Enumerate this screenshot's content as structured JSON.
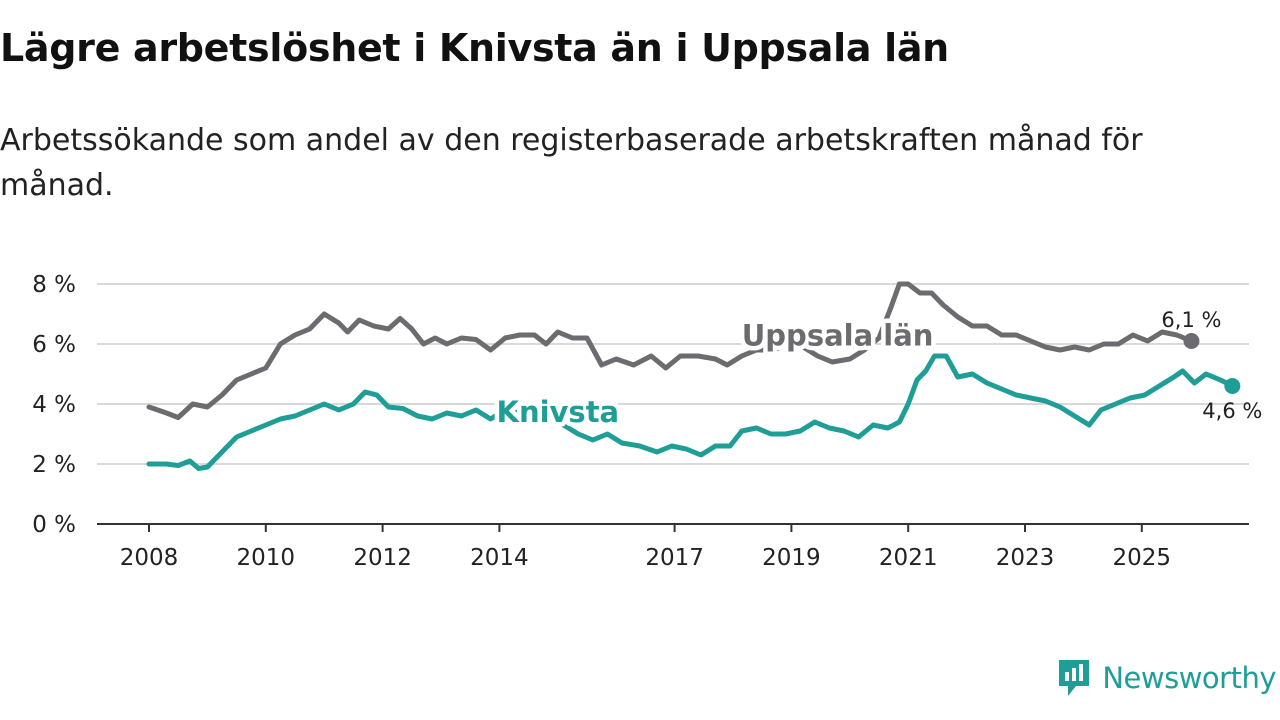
{
  "title": "Lägre arbetslöshet i Knivsta än i Uppsala län",
  "subtitle": "Arbetssökande som andel av den registerbaserade arbetskraften månad för månad.",
  "brand": {
    "name": "Newsworthy",
    "icon": "newsworthy-logo-icon",
    "color": "#1f9e97"
  },
  "chart_data": {
    "type": "line",
    "title": "Lägre arbetslöshet i Knivsta än i Uppsala län",
    "xlabel": "",
    "ylabel": "",
    "xlim": [
      2007.5,
      2027.1
    ],
    "ylim": [
      0,
      8.4
    ],
    "grid": true,
    "yticks": [
      0,
      2,
      4,
      6,
      8
    ],
    "ytick_labels": [
      "0 %",
      "2 %",
      "4 %",
      "6 %",
      "8 %"
    ],
    "xticks": [
      2008,
      2010,
      2012,
      2014,
      2017,
      2019,
      2021,
      2023,
      2025
    ],
    "xtick_labels": [
      "2008",
      "2010",
      "2012",
      "2014",
      "2017",
      "2019",
      "2021",
      "2023",
      "2025"
    ],
    "series": [
      {
        "name": "Uppsala län",
        "color": "#6b6b70",
        "end_label": "6,1 %",
        "points": [
          [
            2008.0,
            3.9
          ],
          [
            2008.3,
            3.7
          ],
          [
            2008.5,
            3.55
          ],
          [
            2008.75,
            4.0
          ],
          [
            2009.0,
            3.9
          ],
          [
            2009.25,
            4.3
          ],
          [
            2009.5,
            4.8
          ],
          [
            2009.75,
            5.0
          ],
          [
            2010.0,
            5.2
          ],
          [
            2010.25,
            6.0
          ],
          [
            2010.5,
            6.3
          ],
          [
            2010.75,
            6.5
          ],
          [
            2011.0,
            7.0
          ],
          [
            2011.25,
            6.7
          ],
          [
            2011.4,
            6.4
          ],
          [
            2011.6,
            6.8
          ],
          [
            2011.85,
            6.6
          ],
          [
            2012.1,
            6.5
          ],
          [
            2012.3,
            6.85
          ],
          [
            2012.5,
            6.5
          ],
          [
            2012.7,
            6.0
          ],
          [
            2012.9,
            6.2
          ],
          [
            2013.1,
            6.0
          ],
          [
            2013.35,
            6.2
          ],
          [
            2013.6,
            6.15
          ],
          [
            2013.85,
            5.8
          ],
          [
            2014.1,
            6.2
          ],
          [
            2014.35,
            6.3
          ],
          [
            2014.6,
            6.3
          ],
          [
            2014.8,
            6.0
          ],
          [
            2015.0,
            6.4
          ],
          [
            2015.25,
            6.2
          ],
          [
            2015.5,
            6.2
          ],
          [
            2015.75,
            5.3
          ],
          [
            2016.0,
            5.5
          ],
          [
            2016.3,
            5.3
          ],
          [
            2016.6,
            5.6
          ],
          [
            2016.85,
            5.2
          ],
          [
            2017.1,
            5.6
          ],
          [
            2017.4,
            5.6
          ],
          [
            2017.7,
            5.5
          ],
          [
            2017.9,
            5.3
          ],
          [
            2018.15,
            5.6
          ],
          [
            2018.4,
            5.8
          ],
          [
            2018.7,
            5.8
          ],
          [
            2018.95,
            6.0
          ],
          [
            2019.2,
            5.9
          ],
          [
            2019.45,
            5.6
          ],
          [
            2019.7,
            5.4
          ],
          [
            2020.0,
            5.5
          ],
          [
            2020.25,
            5.8
          ],
          [
            2020.5,
            6.2
          ],
          [
            2020.7,
            7.2
          ],
          [
            2020.85,
            8.0
          ],
          [
            2021.0,
            8.0
          ],
          [
            2021.2,
            7.7
          ],
          [
            2021.4,
            7.7
          ],
          [
            2021.6,
            7.3
          ],
          [
            2021.85,
            6.9
          ],
          [
            2022.1,
            6.6
          ],
          [
            2022.35,
            6.6
          ],
          [
            2022.6,
            6.3
          ],
          [
            2022.85,
            6.3
          ],
          [
            2023.1,
            6.1
          ],
          [
            2023.35,
            5.9
          ],
          [
            2023.6,
            5.8
          ],
          [
            2023.85,
            5.9
          ],
          [
            2024.1,
            5.8
          ],
          [
            2024.35,
            6.0
          ],
          [
            2024.6,
            6.0
          ],
          [
            2024.85,
            6.3
          ],
          [
            2025.1,
            6.1
          ],
          [
            2025.35,
            6.4
          ],
          [
            2025.6,
            6.3
          ],
          [
            2025.85,
            6.1
          ]
        ]
      },
      {
        "name": "Knivsta",
        "color": "#1f9e97",
        "end_label": "4,6 %",
        "points": [
          [
            2008.0,
            2.0
          ],
          [
            2008.3,
            2.0
          ],
          [
            2008.5,
            1.95
          ],
          [
            2008.7,
            2.1
          ],
          [
            2008.85,
            1.85
          ],
          [
            2009.0,
            1.9
          ],
          [
            2009.25,
            2.4
          ],
          [
            2009.5,
            2.9
          ],
          [
            2009.75,
            3.1
          ],
          [
            2010.0,
            3.3
          ],
          [
            2010.25,
            3.5
          ],
          [
            2010.5,
            3.6
          ],
          [
            2010.75,
            3.8
          ],
          [
            2011.0,
            4.0
          ],
          [
            2011.25,
            3.8
          ],
          [
            2011.5,
            4.0
          ],
          [
            2011.7,
            4.4
          ],
          [
            2011.9,
            4.3
          ],
          [
            2012.1,
            3.9
          ],
          [
            2012.35,
            3.85
          ],
          [
            2012.6,
            3.6
          ],
          [
            2012.85,
            3.5
          ],
          [
            2013.1,
            3.7
          ],
          [
            2013.35,
            3.6
          ],
          [
            2013.6,
            3.8
          ],
          [
            2013.85,
            3.5
          ],
          [
            2014.1,
            3.8
          ],
          [
            2014.35,
            3.7
          ],
          [
            2014.6,
            3.6
          ],
          [
            2014.85,
            3.5
          ],
          [
            2015.1,
            3.3
          ],
          [
            2015.35,
            3.0
          ],
          [
            2015.6,
            2.8
          ],
          [
            2015.85,
            3.0
          ],
          [
            2016.1,
            2.7
          ],
          [
            2016.4,
            2.6
          ],
          [
            2016.7,
            2.4
          ],
          [
            2016.95,
            2.6
          ],
          [
            2017.2,
            2.5
          ],
          [
            2017.45,
            2.3
          ],
          [
            2017.7,
            2.6
          ],
          [
            2017.95,
            2.6
          ],
          [
            2018.15,
            3.1
          ],
          [
            2018.4,
            3.2
          ],
          [
            2018.65,
            3.0
          ],
          [
            2018.9,
            3.0
          ],
          [
            2019.15,
            3.1
          ],
          [
            2019.4,
            3.4
          ],
          [
            2019.65,
            3.2
          ],
          [
            2019.9,
            3.1
          ],
          [
            2020.15,
            2.9
          ],
          [
            2020.4,
            3.3
          ],
          [
            2020.65,
            3.2
          ],
          [
            2020.85,
            3.4
          ],
          [
            2021.0,
            4.0
          ],
          [
            2021.15,
            4.8
          ],
          [
            2021.3,
            5.1
          ],
          [
            2021.45,
            5.6
          ],
          [
            2021.65,
            5.6
          ],
          [
            2021.85,
            4.9
          ],
          [
            2022.1,
            5.0
          ],
          [
            2022.35,
            4.7
          ],
          [
            2022.6,
            4.5
          ],
          [
            2022.85,
            4.3
          ],
          [
            2023.1,
            4.2
          ],
          [
            2023.35,
            4.1
          ],
          [
            2023.6,
            3.9
          ],
          [
            2023.85,
            3.6
          ],
          [
            2024.1,
            3.3
          ],
          [
            2024.3,
            3.8
          ],
          [
            2024.55,
            4.0
          ],
          [
            2024.8,
            4.2
          ],
          [
            2025.05,
            4.3
          ],
          [
            2025.3,
            4.6
          ],
          [
            2025.55,
            4.9
          ],
          [
            2025.7,
            5.1
          ],
          [
            2025.9,
            4.7
          ],
          [
            2026.1,
            5.0
          ],
          [
            2026.35,
            4.8
          ],
          [
            2026.55,
            4.6
          ]
        ]
      }
    ]
  }
}
